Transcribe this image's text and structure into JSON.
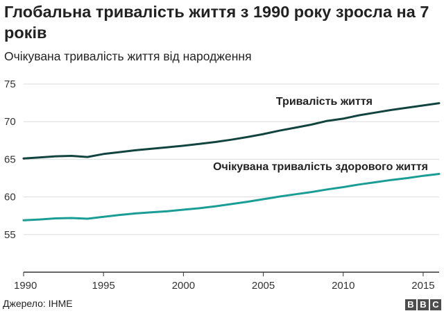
{
  "header": {
    "title": "Глобальна тривалість життя з 1990 року зросла на 7 років",
    "subtitle": "Очікувана тривалість життя від народження"
  },
  "footer": {
    "source": "Джерело: IHME",
    "logo_letters": [
      "B",
      "B",
      "C"
    ]
  },
  "colors": {
    "life_expectancy": "#12443f",
    "healthy_life_expectancy": "#1a9d95",
    "grid": "#dcdcdc",
    "axis": "#333333",
    "logo": "#4d4d4d"
  },
  "chart_data": {
    "type": "line",
    "title": "Глобальна тривалість життя з 1990 року зросла на 7 років",
    "subtitle": "Очікувана тривалість життя від народження",
    "xlabel": "",
    "ylabel": "",
    "xlim": [
      1990,
      2016
    ],
    "ylim": [
      50,
      75
    ],
    "xticks": [
      1990,
      1995,
      2000,
      2005,
      2010,
      2015
    ],
    "yticks": [
      55,
      60,
      65,
      70,
      75
    ],
    "grid": true,
    "legend": "direct labels on lines",
    "x": [
      1990,
      1991,
      1992,
      1993,
      1994,
      1995,
      1996,
      1997,
      1998,
      1999,
      2000,
      2001,
      2002,
      2003,
      2004,
      2005,
      2006,
      2007,
      2008,
      2009,
      2010,
      2011,
      2012,
      2013,
      2014,
      2015,
      2016
    ],
    "series": [
      {
        "name": "Тривалість життя",
        "color": "#12443f",
        "values": [
          65.1,
          65.25,
          65.4,
          65.45,
          65.3,
          65.7,
          65.95,
          66.2,
          66.4,
          66.6,
          66.8,
          67.05,
          67.3,
          67.6,
          67.95,
          68.35,
          68.8,
          69.2,
          69.6,
          70.1,
          70.4,
          70.85,
          71.2,
          71.55,
          71.85,
          72.15,
          72.45
        ]
      },
      {
        "name": "Очікувана тривалість здорового життя",
        "color": "#1a9d95",
        "values": [
          56.9,
          57.0,
          57.15,
          57.2,
          57.1,
          57.35,
          57.6,
          57.8,
          57.95,
          58.1,
          58.3,
          58.5,
          58.75,
          59.05,
          59.35,
          59.7,
          60.05,
          60.35,
          60.65,
          61.0,
          61.3,
          61.65,
          61.95,
          62.25,
          62.5,
          62.8,
          63.05
        ]
      }
    ]
  }
}
